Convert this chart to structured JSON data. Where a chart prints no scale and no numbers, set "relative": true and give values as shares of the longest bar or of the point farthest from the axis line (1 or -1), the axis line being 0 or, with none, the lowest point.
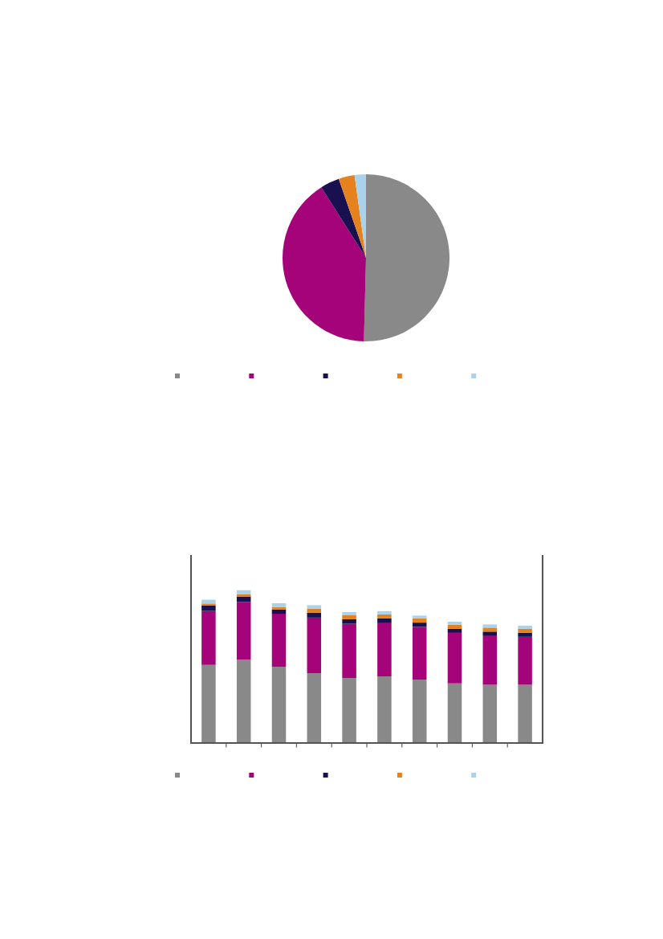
{
  "chart_data": [
    {
      "type": "pie",
      "categories": [
        null,
        null,
        null,
        null,
        null
      ],
      "values": [
        50.4,
        40.6,
        3.7,
        3.1,
        2.2
      ],
      "colors": [
        "#898989",
        "#a5037a",
        "#18104f",
        "#e5821e",
        "#a8d3ea"
      ]
    },
    {
      "type": "bar",
      "stacked": true,
      "relative": true,
      "categories": [
        null,
        null,
        null,
        null,
        null,
        null,
        null,
        null,
        null,
        null
      ],
      "series": [
        {
          "color": "#898989",
          "values": [
            0.511,
            0.547,
            0.5,
            0.458,
            0.426,
            0.437,
            0.416,
            0.391,
            0.381,
            0.381
          ]
        },
        {
          "color": "#a5037a",
          "values": [
            0.353,
            0.377,
            0.346,
            0.363,
            0.354,
            0.351,
            0.344,
            0.33,
            0.323,
            0.314
          ]
        },
        {
          "color": "#18104f",
          "values": [
            0.037,
            0.035,
            0.028,
            0.032,
            0.03,
            0.028,
            0.028,
            0.026,
            0.025,
            0.026
          ]
        },
        {
          "color": "#e5821e",
          "values": [
            0.012,
            0.014,
            0.016,
            0.026,
            0.026,
            0.026,
            0.028,
            0.028,
            0.026,
            0.026
          ]
        },
        {
          "color": "#a8d3ea",
          "values": [
            0.025,
            0.027,
            0.025,
            0.023,
            0.021,
            0.021,
            0.018,
            0.019,
            0.021,
            0.021
          ]
        }
      ]
    }
  ]
}
